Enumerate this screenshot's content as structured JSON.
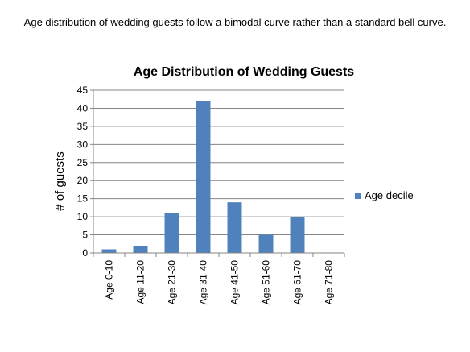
{
  "caption": "Age distribution of wedding guests follow a bimodal curve rather than a standard bell curve.",
  "chart_data": {
    "type": "bar",
    "title": "Age Distribution of Wedding Guests",
    "xlabel": "",
    "ylabel": "# of guests",
    "categories": [
      "Age 0-10",
      "Age 11-20",
      "Age 21-30",
      "Age 31-40",
      "Age 41-50",
      "Age 51-60",
      "Age 61-70",
      "Age 71-80"
    ],
    "series": [
      {
        "name": "Age decile",
        "values": [
          1,
          2,
          11,
          42,
          14,
          5,
          10,
          0
        ],
        "color": "#4F81BD"
      }
    ],
    "ylim": [
      0,
      45
    ],
    "yticks": [
      0,
      5,
      10,
      15,
      20,
      25,
      30,
      35,
      40,
      45
    ],
    "grid": true,
    "legend_position": "right"
  }
}
